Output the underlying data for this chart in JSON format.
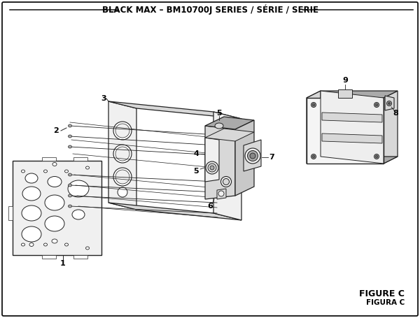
{
  "title": "BLACK MAX – BM10700J SERIES / SÉRIE / SERIE",
  "figure_label": "FIGURE C",
  "figura_label": "FIGURA C",
  "bg_color": "#ffffff",
  "border_color": "#111111",
  "line_color": "#222222",
  "gray_light": "#f0f0f0",
  "gray_mid": "#d8d8d8",
  "gray_dark": "#aaaaaa",
  "title_fontsize": 8.5,
  "callout_fontsize": 8
}
